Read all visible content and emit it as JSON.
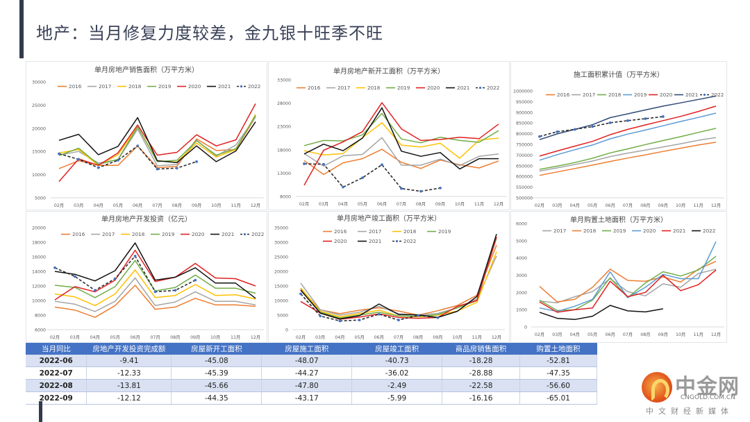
{
  "page": {
    "title": "地产：当月修复力度较差，金九银十旺季不旺"
  },
  "colors": {
    "y2016": "#ed7d31",
    "y2017": "#a5a5a5",
    "y2018": "#ffc000",
    "y2019": "#70ad47",
    "y2020": "#e02020",
    "y2021": "#111111",
    "y2022": "#2b2b2b",
    "y2022_marker": "#4472c4",
    "blue2019": "#5b9bd5",
    "navy2021": "#2f4a78",
    "table_header": "#4472c4"
  },
  "chart_data": [
    {
      "id": "sales-area",
      "type": "line",
      "title": "单月房地产销售面积（万平方米）",
      "categories": [
        "02月",
        "03月",
        "04月",
        "05月",
        "06月",
        "07月",
        "08月",
        "09月",
        "10月",
        "11月",
        "12月"
      ],
      "ylim": [
        5000,
        30000
      ],
      "yticks": [
        5000,
        10000,
        15000,
        20000,
        25000,
        30000
      ],
      "ytick_labels": [
        "5000",
        "10000",
        "15000",
        "20000",
        "25000",
        "30000"
      ],
      "legend": "top",
      "grid": false,
      "series": [
        {
          "name": "2016",
          "color": "#ed7d31",
          "values": [
            11300,
            13000,
            12000,
            12000,
            16200,
            11500,
            11800,
            17700,
            15200,
            15400,
            22500
          ]
        },
        {
          "name": "2017",
          "color": "#a5a5a5",
          "values": [
            14200,
            15000,
            12500,
            13200,
            19800,
            11900,
            12200,
            17400,
            14000,
            16400,
            22400
          ]
        },
        {
          "name": "2018",
          "color": "#ffc000",
          "values": [
            14700,
            15400,
            12000,
            14300,
            20300,
            13000,
            12700,
            16800,
            13800,
            15400,
            23000
          ]
        },
        {
          "name": "2019",
          "color": "#70ad47",
          "values": [
            14100,
            15700,
            12200,
            13300,
            20300,
            12800,
            13100,
            17300,
            14200,
            15600,
            22800
          ]
        },
        {
          "name": "2020",
          "color": "#e02020",
          "values": [
            8500,
            13400,
            12000,
            14700,
            20700,
            14200,
            14800,
            18600,
            16200,
            17500,
            25300
          ]
        },
        {
          "name": "2021",
          "color": "#111111",
          "values": [
            17400,
            18700,
            14300,
            16100,
            22300,
            13000,
            12600,
            16200,
            12800,
            15100,
            21400
          ]
        },
        {
          "name": "2022",
          "color": "#2b2b2b",
          "dashed": true,
          "marker": "#4472c4",
          "values": [
            14500,
            13300,
            11500,
            13100,
            16200,
            11200,
            11400,
            12800
          ]
        }
      ]
    },
    {
      "id": "new-starts",
      "type": "line",
      "title": "单月房地产新开工面积（万平方米）",
      "categories": [
        "02月",
        "03月",
        "04月",
        "05月",
        "06月",
        "07月",
        "08月",
        "09月",
        "10月",
        "11月",
        "12月"
      ],
      "ylim": [
        8000,
        33000
      ],
      "yticks": [
        8000,
        13000,
        18000,
        23000,
        28000,
        33000
      ],
      "ytick_labels": [
        "8000",
        "13000",
        "18000",
        "23000",
        "28000",
        "33000"
      ],
      "legend": "top",
      "grid": false,
      "series": [
        {
          "name": "2016",
          "color": "#ed7d31",
          "values": [
            15700,
            12700,
            15200,
            16100,
            18100,
            15300,
            14000,
            15800,
            14800,
            14100,
            15600
          ]
        },
        {
          "name": "2017",
          "color": "#a5a5a5",
          "values": [
            17200,
            14500,
            16700,
            17000,
            20600,
            14700,
            14700,
            16000,
            14600,
            16600,
            17100
          ]
        },
        {
          "name": "2018",
          "color": "#ffc000",
          "values": [
            17800,
            16900,
            17200,
            20600,
            23800,
            19000,
            18600,
            19400,
            16200,
            20100,
            20500
          ]
        },
        {
          "name": "2019",
          "color": "#70ad47",
          "values": [
            18900,
            20000,
            19900,
            21200,
            25800,
            20300,
            19500,
            20700,
            20000,
            19600,
            22100
          ]
        },
        {
          "name": "2020",
          "color": "#e02020",
          "values": [
            10400,
            17900,
            19700,
            21900,
            28100,
            22500,
            20000,
            20200,
            20700,
            20400,
            23500
          ]
        },
        {
          "name": "2021",
          "color": "#111111",
          "values": [
            17100,
            19200,
            17800,
            20500,
            27000,
            17700,
            16600,
            17400,
            13900,
            16100,
            16100
          ]
        },
        {
          "name": "2022",
          "color": "#2b2b2b",
          "dashed": true,
          "marker": "#4472c4",
          "values": [
            15000,
            14900,
            10000,
            12000,
            14800,
            9700,
            9100,
            9800
          ]
        }
      ]
    },
    {
      "id": "under-construction",
      "type": "line",
      "title": "施工面积累计值（万平方米）",
      "categories": [
        "02月",
        "03月",
        "04月",
        "05月",
        "06月",
        "07月",
        "08月",
        "09月",
        "10月",
        "11月",
        "12月"
      ],
      "ylim": [
        500000,
        1000000
      ],
      "yticks": [
        500000,
        550000,
        600000,
        650000,
        700000,
        750000,
        800000,
        850000,
        900000,
        950000,
        1000000
      ],
      "ytick_labels": [
        "500000",
        "550000",
        "600000",
        "650000",
        "700000",
        "750000",
        "800000",
        "850000",
        "900000",
        "950000",
        "1000000"
      ],
      "legend": "top",
      "grid": false,
      "series": [
        {
          "name": "2016",
          "color": "#ed7d31",
          "values": [
            605000,
            621000,
            637000,
            653000,
            670000,
            686000,
            701000,
            717000,
            732000,
            747000,
            760000
          ]
        },
        {
          "name": "2017",
          "color": "#a5a5a5",
          "values": [
            625000,
            640000,
            656000,
            672000,
            693000,
            709000,
            723000,
            738000,
            753000,
            769000,
            782000
          ]
        },
        {
          "name": "2018",
          "color": "#70ad47",
          "values": [
            633000,
            648000,
            665000,
            685000,
            710000,
            729000,
            749000,
            768000,
            786000,
            806000,
            825000
          ]
        },
        {
          "name": "2019",
          "color": "#5b9bd5",
          "values": [
            676000,
            702000,
            725000,
            747000,
            776000,
            798000,
            817000,
            837000,
            857000,
            876000,
            896000
          ]
        },
        {
          "name": "2020",
          "color": "#e02020",
          "values": [
            695000,
            719000,
            742000,
            764000,
            795000,
            820000,
            841000,
            861000,
            881000,
            904000,
            929000
          ]
        },
        {
          "name": "2021",
          "color": "#2f4a78",
          "values": [
            772000,
            799000,
            820000,
            842000,
            875000,
            893000,
            911000,
            929000,
            944000,
            960000,
            976000
          ]
        },
        {
          "name": "2022",
          "color": "#2b2b2b",
          "dashed": true,
          "marker": "#4472c4",
          "values": [
            787000,
            809000,
            820000,
            833000,
            851000,
            861000,
            870000,
            880000
          ]
        }
      ]
    },
    {
      "id": "investment",
      "type": "line",
      "title": "单月房地产开发投资（亿元）",
      "categories": [
        "02月",
        "03月",
        "04月",
        "05月",
        "06月",
        "07月",
        "08月",
        "09月",
        "10月",
        "11月",
        "12月"
      ],
      "ylim": [
        6000,
        20000
      ],
      "yticks": [
        6000,
        8000,
        10000,
        12000,
        14000,
        16000,
        18000,
        20000
      ],
      "ytick_labels": [
        "6000",
        "8000",
        "10000",
        "12000",
        "14000",
        "16000",
        "18000",
        "20000"
      ],
      "legend": "top",
      "grid": false,
      "series": [
        {
          "name": "2016",
          "color": "#ed7d31",
          "values": [
            9100,
            8700,
            7700,
            9300,
            12100,
            8800,
            9100,
            10300,
            9400,
            9400,
            9200
          ]
        },
        {
          "name": "2017",
          "color": "#a5a5a5",
          "values": [
            9900,
            9500,
            8500,
            9900,
            13100,
            9300,
            9800,
            11200,
            9900,
            9900,
            9400
          ]
        },
        {
          "name": "2018",
          "color": "#ffc000",
          "values": [
            10900,
            10500,
            9300,
            10900,
            14200,
            10400,
            10700,
            12200,
            10700,
            10800,
            10200
          ]
        },
        {
          "name": "2019",
          "color": "#70ad47",
          "values": [
            12100,
            11800,
            10400,
            11900,
            15500,
            11300,
            11800,
            13500,
            11700,
            11700,
            11000
          ]
        },
        {
          "name": "2020",
          "color": "#e02020",
          "values": [
            10100,
            11900,
            11200,
            12800,
            16900,
            12600,
            13200,
            15100,
            13100,
            13000,
            12000
          ]
        },
        {
          "name": "2021",
          "color": "#111111",
          "values": [
            14000,
            13600,
            12700,
            14100,
            17900,
            12800,
            13200,
            14500,
            12400,
            12400,
            10300
          ]
        },
        {
          "name": "2022",
          "color": "#2b2b2b",
          "dashed": true,
          "marker": "#4472c4",
          "values": [
            14500,
            13300,
            11400,
            13000,
            16100,
            11200,
            11400,
            12800
          ]
        }
      ]
    },
    {
      "id": "completions",
      "type": "line",
      "title": "单月房地产竣工面积（万平方米）",
      "categories": [
        "02月",
        "03月",
        "04月",
        "05月",
        "06月",
        "07月",
        "08月",
        "09月",
        "10月",
        "11月",
        "12月"
      ],
      "ylim": [
        0,
        35000
      ],
      "yticks": [
        0,
        5000,
        10000,
        15000,
        20000,
        25000,
        30000,
        35000
      ],
      "ytick_labels": [
        "0",
        "5000",
        "10000",
        "15000",
        "20000",
        "25000",
        "30000",
        "35000"
      ],
      "legend": "top",
      "grid": false,
      "series": [
        {
          "name": "2016",
          "color": "#ed7d31",
          "values": [
            14000,
            6800,
            5500,
            6700,
            7500,
            6400,
            5000,
            6500,
            8300,
            11800,
            29000
          ]
        },
        {
          "name": "2017",
          "color": "#a5a5a5",
          "values": [
            16000,
            6800,
            5000,
            6000,
            8000,
            5500,
            5000,
            5600,
            7500,
            10500,
            25300
          ]
        },
        {
          "name": "2018",
          "color": "#ffc000",
          "values": [
            14300,
            6300,
            4400,
            5500,
            6700,
            4700,
            4400,
            5000,
            6400,
            9400,
            26700
          ]
        },
        {
          "name": "2019",
          "color": "#70ad47",
          "values": [
            13500,
            6000,
            4000,
            5000,
            6000,
            4700,
            4600,
            5200,
            7500,
            10000,
            31500
          ]
        },
        {
          "name": "2020",
          "color": "#e02020",
          "values": [
            9700,
            5700,
            3600,
            4300,
            5400,
            4200,
            3900,
            4200,
            8000,
            10000,
            31800
          ]
        },
        {
          "name": "2021",
          "color": "#111111",
          "values": [
            13600,
            5700,
            3700,
            4800,
            8800,
            5200,
            5100,
            4200,
            6300,
            11400,
            32800
          ]
        },
        {
          "name": "2022",
          "color": "#2b2b2b",
          "dashed": true,
          "marker": "#4472c4",
          "values": [
            12300,
            4700,
            3000,
            3300,
            5300,
            3300,
            4900,
            4100
          ]
        }
      ]
    },
    {
      "id": "land-purchase",
      "type": "line",
      "title": "单月购置土地面积（万平方米）",
      "categories": [
        "02月",
        "03月",
        "04月",
        "05月",
        "06月",
        "07月",
        "08月",
        "09月",
        "10月",
        "11月",
        "12月"
      ],
      "ylim": [
        0,
        6000
      ],
      "yticks": [
        0,
        1000,
        2000,
        3000,
        4000,
        5000,
        6000
      ],
      "ytick_labels": [
        "0",
        "1000",
        "2000",
        "3000",
        "4000",
        "5000",
        "6000"
      ],
      "legend": "top",
      "grid": false,
      "series": [
        {
          "name": "2017",
          "color": "#a5a5a5",
          "values": [
            1500,
            1400,
            1750,
            2050,
            2800,
            2050,
            1800,
            2500,
            2300,
            3100,
            3350
          ]
        },
        {
          "name": "2018",
          "color": "#ed7d31",
          "values": [
            2350,
            1450,
            1600,
            2300,
            3350,
            2700,
            2650,
            2900,
            2600,
            3350,
            3800
          ]
        },
        {
          "name": "2019",
          "color": "#70ad47",
          "values": [
            1550,
            950,
            1000,
            1550,
            2850,
            1700,
            2550,
            3200,
            2950,
            3300,
            4100
          ]
        },
        {
          "name": "2020",
          "color": "#5b9bd5",
          "values": [
            1100,
            900,
            1200,
            1600,
            3200,
            1700,
            2300,
            3050,
            2800,
            2800,
            4950
          ]
        },
        {
          "name": "2021",
          "color": "#e02020",
          "values": [
            1450,
            850,
            1000,
            1100,
            2650,
            1750,
            2000,
            3000,
            2100,
            2450,
            3300
          ]
        },
        {
          "name": "2022",
          "color": "#111111",
          "values": [
            850,
            500,
            430,
            620,
            1250,
            930,
            870,
            1050
          ]
        }
      ]
    }
  ],
  "table": {
    "headers": [
      "当月同比",
      "房地产开发投资完成额",
      "房屋新开工面积",
      "房屋施工面积",
      "房屋竣工面积",
      "商品房销售面积",
      "购置土地面积"
    ],
    "rows": [
      [
        "2022-06",
        "-9.41",
        "-45.08",
        "-48.07",
        "-40.73",
        "-18.28",
        "-52.81"
      ],
      [
        "2022-07",
        "-12.33",
        "-45.39",
        "-44.27",
        "-36.02",
        "-28.88",
        "-47.35"
      ],
      [
        "2022-08",
        "-13.81",
        "-45.66",
        "-47.80",
        "-2.49",
        "-22.58",
        "-56.60"
      ],
      [
        "2022-09",
        "-12.12",
        "-44.35",
        "-43.17",
        "-5.99",
        "-16.16",
        "-65.01"
      ]
    ]
  },
  "logo": {
    "brand": "中金网",
    "domain": "CNGOLD.COM.CN",
    "tagline": "中文财经新媒体"
  }
}
